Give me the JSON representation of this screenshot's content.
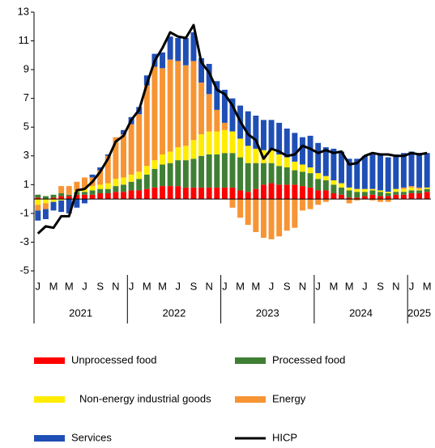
{
  "chart_data": {
    "type": "stacked-bar-line",
    "categories": [
      "J",
      null,
      "M",
      null,
      "M",
      null,
      "J",
      null,
      "S",
      null,
      "N",
      null,
      "J",
      null,
      "M",
      null,
      "M",
      null,
      "J",
      null,
      "S",
      null,
      "N",
      null,
      "J",
      null,
      "M",
      null,
      "M",
      null,
      "J",
      null,
      "S",
      null,
      "N",
      null,
      "J",
      null,
      "M",
      null,
      "M",
      null,
      "J",
      null,
      "S",
      null,
      "N",
      null,
      "J",
      null,
      "M"
    ],
    "years": [
      "2021",
      "2022",
      "2023",
      "2024",
      "2025"
    ],
    "ylim": [
      -5,
      13
    ],
    "yticks": [
      -5,
      -3,
      -1,
      1,
      3,
      5,
      7,
      9,
      11,
      13
    ],
    "legend": "bottom",
    "series": [
      {
        "name": "Unprocessed food",
        "color": "#ff0000",
        "type": "bar",
        "values": [
          0.1,
          0.0,
          0.1,
          0.2,
          0.2,
          0.3,
          0.3,
          0.3,
          0.4,
          0.4,
          0.5,
          0.5,
          0.6,
          0.6,
          0.7,
          0.8,
          0.9,
          0.9,
          0.9,
          0.8,
          0.8,
          0.8,
          0.8,
          0.8,
          0.8,
          0.8,
          0.6,
          0.5,
          0.7,
          1.0,
          1.1,
          1.0,
          1.0,
          1.0,
          0.9,
          0.8,
          0.6,
          0.6,
          0.4,
          0.3,
          0.1,
          0.1,
          0.2,
          0.3,
          0.2,
          0.2,
          0.3,
          0.3,
          0.4,
          0.4,
          0.5
        ]
      },
      {
        "name": "Processed food",
        "color": "#3f7f34",
        "type": "bar",
        "values": [
          0.2,
          0.2,
          0.2,
          0.2,
          0.1,
          0.2,
          0.2,
          0.3,
          0.3,
          0.3,
          0.4,
          0.5,
          0.6,
          0.8,
          1.0,
          1.3,
          1.5,
          1.6,
          1.8,
          1.9,
          2.0,
          2.2,
          2.3,
          2.3,
          2.4,
          2.4,
          2.3,
          2.0,
          1.8,
          1.5,
          1.4,
          1.3,
          1.2,
          1.0,
          1.0,
          1.0,
          0.8,
          0.7,
          0.6,
          0.5,
          0.5,
          0.4,
          0.3,
          0.3,
          0.3,
          0.2,
          0.2,
          0.2,
          0.2,
          0.2,
          0.2
        ]
      },
      {
        "name": "Non-energy industrial goods",
        "color": "#ffec00",
        "type": "bar",
        "values": [
          -0.4,
          -0.3,
          -0.2,
          -0.1,
          0.0,
          0.1,
          0.2,
          0.3,
          0.3,
          0.4,
          0.5,
          0.5,
          0.5,
          0.5,
          0.6,
          0.6,
          0.7,
          0.8,
          0.9,
          1.0,
          1.3,
          1.5,
          1.6,
          1.6,
          1.6,
          1.5,
          1.3,
          1.2,
          1.0,
          0.9,
          0.9,
          0.8,
          0.7,
          0.6,
          0.5,
          0.4,
          0.4,
          0.3,
          0.3,
          0.3,
          0.2,
          0.2,
          0.2,
          0.1,
          0.1,
          0.1,
          0.2,
          0.2,
          0.2,
          0.1,
          0.1
        ]
      },
      {
        "name": "Energy",
        "color": "#f79433",
        "type": "bar",
        "values": [
          -0.4,
          -0.4,
          0.0,
          0.5,
          0.6,
          0.6,
          0.8,
          0.6,
          1.0,
          1.9,
          2.9,
          3.0,
          3.5,
          4.0,
          5.6,
          6.5,
          6.0,
          6.4,
          6.0,
          5.6,
          5.5,
          3.6,
          2.6,
          1.5,
          0.5,
          -0.6,
          -1.3,
          -1.8,
          -2.3,
          -2.7,
          -2.8,
          -2.6,
          -2.2,
          -2.0,
          -0.8,
          -0.7,
          -0.4,
          -0.2,
          0.0,
          0.0,
          -0.3,
          -0.1,
          0.0,
          -0.1,
          -0.2,
          -0.2,
          0.0,
          0.1,
          0.1,
          0.1,
          0.0
        ]
      },
      {
        "name": "Services",
        "color": "#1f4fb5",
        "type": "bar",
        "values": [
          -0.7,
          -0.7,
          -0.6,
          -0.8,
          -1.0,
          -0.6,
          -0.3,
          0.2,
          0.2,
          0.1,
          0.0,
          0.3,
          0.5,
          0.5,
          0.7,
          0.9,
          1.1,
          1.6,
          1.6,
          1.9,
          2.0,
          1.7,
          2.1,
          2.0,
          2.3,
          2.3,
          2.3,
          2.4,
          2.3,
          2.1,
          2.1,
          2.2,
          2.0,
          2.0,
          1.9,
          2.2,
          2.1,
          2.0,
          2.2,
          2.2,
          2.0,
          2.1,
          2.3,
          2.4,
          2.5,
          2.4,
          2.4,
          2.4,
          2.4,
          2.4,
          2.4
        ]
      },
      {
        "name": "HICP",
        "color": "#000000",
        "type": "line",
        "values": [
          -2.4,
          -1.9,
          -2.0,
          -1.2,
          -1.2,
          0.6,
          0.7,
          1.2,
          1.9,
          2.8,
          4.0,
          4.4,
          5.5,
          6.2,
          8.0,
          9.6,
          10.5,
          11.6,
          11.3,
          11.2,
          12.1,
          9.5,
          8.8,
          7.6,
          7.3,
          6.5,
          5.4,
          4.5,
          4.1,
          2.8,
          3.5,
          3.3,
          3.0,
          3.1,
          3.7,
          3.5,
          3.2,
          3.4,
          3.2,
          3.3,
          2.4,
          2.5,
          3.0,
          3.2,
          3.1,
          3.1,
          3.0,
          3.0,
          3.2,
          3.1,
          3.2
        ]
      }
    ]
  }
}
